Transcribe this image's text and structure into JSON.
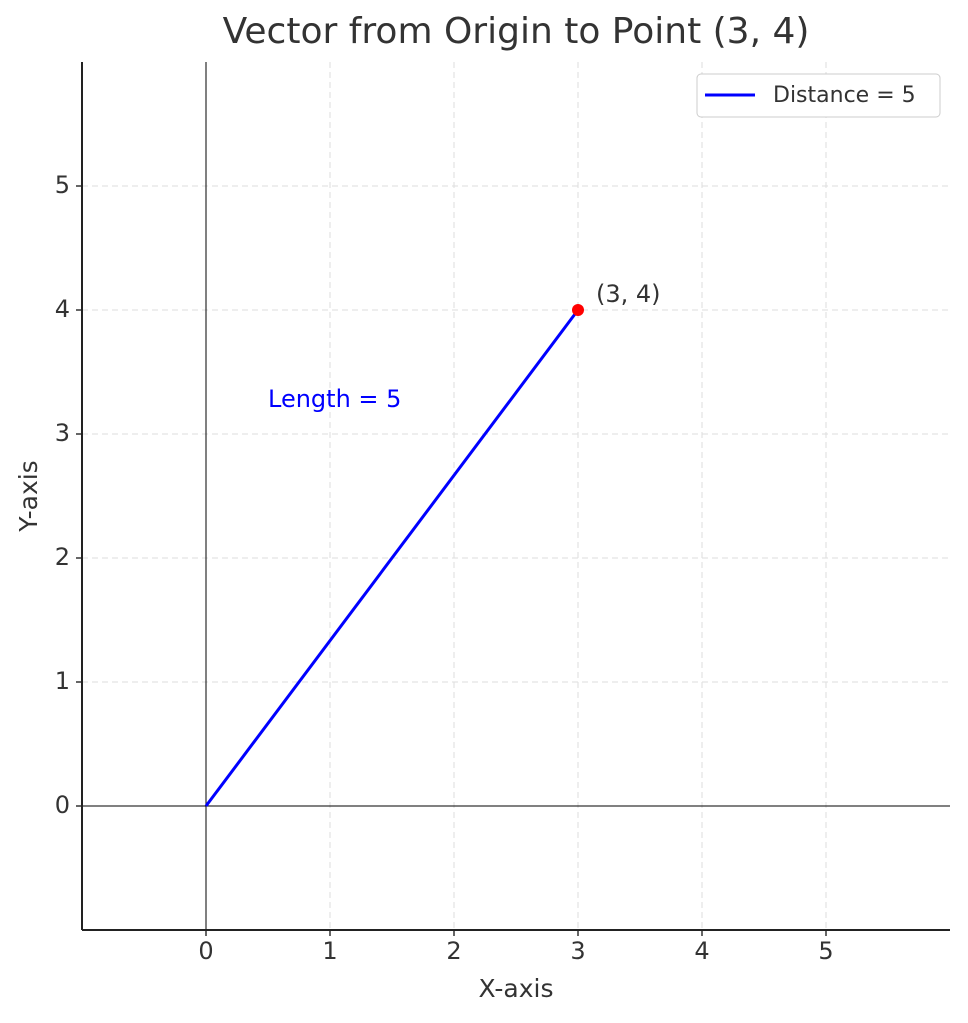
{
  "chart_data": {
    "type": "line",
    "title": "Vector from Origin to Point (3, 4)",
    "xlabel": "X-axis",
    "ylabel": "Y-axis",
    "series": [
      {
        "name": "Distance = 5",
        "color": "#0000ff",
        "x": [
          0,
          3
        ],
        "values": [
          0,
          4
        ]
      }
    ],
    "point": {
      "x": 3,
      "y": 4,
      "color": "#ff0000"
    },
    "annotations": [
      {
        "text": "(3, 4)",
        "color": "#333333"
      },
      {
        "text": "Length = 5",
        "color": "#0000ff"
      }
    ],
    "xlim": [
      -1,
      6
    ],
    "ylim": [
      -1,
      6
    ],
    "xticks": [
      0,
      1,
      2,
      3,
      4,
      5
    ],
    "yticks": [
      0,
      1,
      2,
      3,
      4,
      5
    ],
    "grid": true,
    "zero_lines": true,
    "legend": "upper right"
  }
}
